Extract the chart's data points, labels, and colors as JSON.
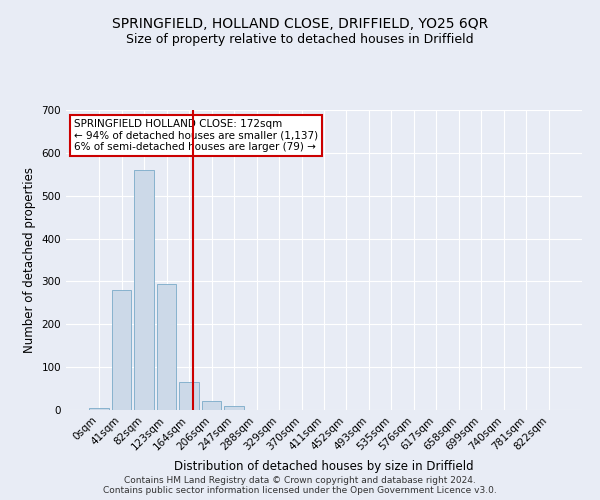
{
  "title1": "SPRINGFIELD, HOLLAND CLOSE, DRIFFIELD, YO25 6QR",
  "title2": "Size of property relative to detached houses in Driffield",
  "xlabel": "Distribution of detached houses by size in Driffield",
  "ylabel": "Number of detached properties",
  "bar_values": [
    5,
    280,
    560,
    295,
    65,
    20,
    10,
    0,
    0,
    0,
    0,
    0,
    0,
    0,
    0,
    0,
    0,
    0,
    0,
    0,
    0
  ],
  "bar_labels": [
    "0sqm",
    "41sqm",
    "82sqm",
    "123sqm",
    "164sqm",
    "206sqm",
    "247sqm",
    "288sqm",
    "329sqm",
    "370sqm",
    "411sqm",
    "452sqm",
    "493sqm",
    "535sqm",
    "576sqm",
    "617sqm",
    "658sqm",
    "699sqm",
    "740sqm",
    "781sqm",
    "822sqm"
  ],
  "bar_color": "#ccd9e8",
  "bar_edge_color": "#7aaac8",
  "vline_color": "#cc0000",
  "annotation_line1": "SPRINGFIELD HOLLAND CLOSE: 172sqm",
  "annotation_line2": "← 94% of detached houses are smaller (1,137)",
  "annotation_line3": "6% of semi-detached houses are larger (79) →",
  "annotation_box_color": "#ffffff",
  "annotation_box_edge": "#cc0000",
  "ylim": [
    0,
    700
  ],
  "yticks": [
    0,
    100,
    200,
    300,
    400,
    500,
    600,
    700
  ],
  "footnote1": "Contains HM Land Registry data © Crown copyright and database right 2024.",
  "footnote2": "Contains public sector information licensed under the Open Government Licence v3.0.",
  "bg_color": "#e8ecf5",
  "plot_bg_color": "#e8ecf5",
  "title1_fontsize": 10,
  "title2_fontsize": 9,
  "axis_label_fontsize": 8.5,
  "tick_fontsize": 7.5,
  "annotation_fontsize": 7.5,
  "footnote_fontsize": 6.5,
  "vline_pos": 4.19
}
